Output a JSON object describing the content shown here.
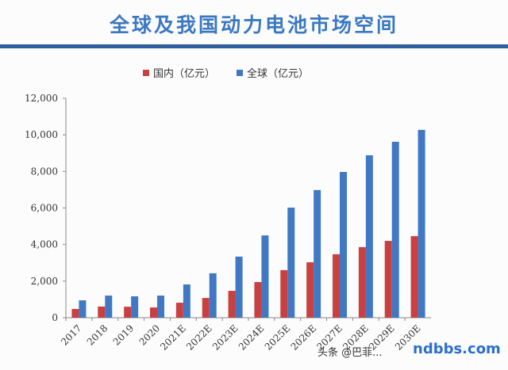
{
  "title": "全球及我国动力电池市场空间",
  "watermark": {
    "text": "头条 @巴菲...",
    "site": "ndbbs.com"
  },
  "chart_data": {
    "type": "bar",
    "categories": [
      "2017",
      "2018",
      "2019",
      "2020",
      "2021E",
      "2022E",
      "2023E",
      "2024E",
      "2025E",
      "2026E",
      "2027E",
      "2028E",
      "2029E",
      "2030E"
    ],
    "series": [
      {
        "name": "国内（亿元）",
        "color": "#c94040",
        "values": [
          480,
          610,
          600,
          560,
          820,
          1080,
          1470,
          1950,
          2600,
          3030,
          3470,
          3860,
          4200,
          4460
        ]
      },
      {
        "name": "全球（亿元）",
        "color": "#4178c4",
        "values": [
          950,
          1210,
          1170,
          1210,
          1820,
          2430,
          3340,
          4500,
          6020,
          6980,
          7970,
          8880,
          9620,
          10270
        ]
      }
    ],
    "ylim": [
      0,
      12000
    ],
    "yticks": [
      "0",
      "2,000",
      "4,000",
      "6,000",
      "8,000",
      "10,000",
      "12,000"
    ],
    "legend": "top",
    "grid": false
  }
}
